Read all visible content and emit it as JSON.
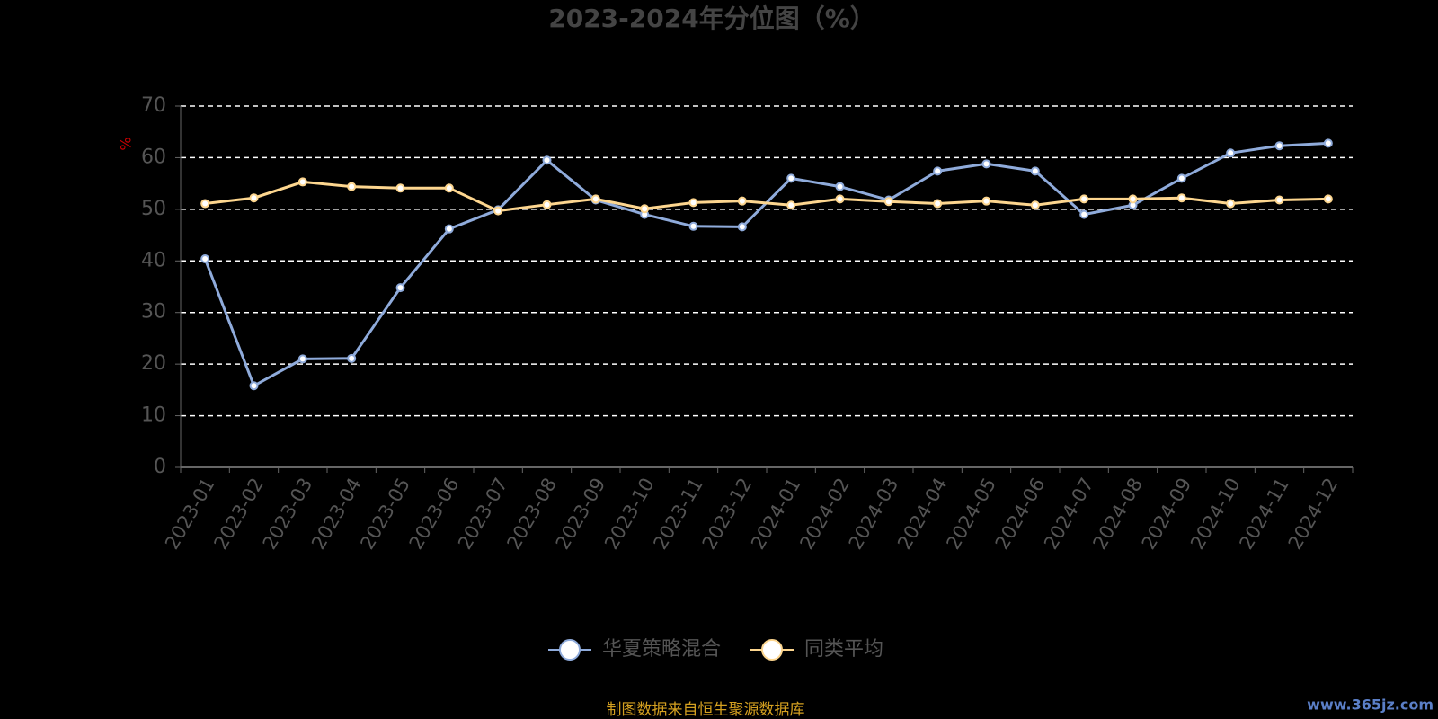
{
  "chart_data": {
    "type": "line",
    "title": "2023-2024年分位图（%）",
    "y_label": "%",
    "categories": [
      "2023-01",
      "2023-02",
      "2023-03",
      "2023-04",
      "2023-05",
      "2023-06",
      "2023-07",
      "2023-08",
      "2023-09",
      "2023-10",
      "2023-11",
      "2023-12",
      "2024-01",
      "2024-02",
      "2024-03",
      "2024-04",
      "2024-05",
      "2024-06",
      "2024-07",
      "2024-08",
      "2024-09",
      "2024-10",
      "2024-11",
      "2024-12"
    ],
    "series": [
      {
        "name": "华夏策略混合",
        "color": "#8fabdb",
        "values": [
          40.4,
          15.8,
          21.0,
          21.1,
          34.8,
          46.2,
          49.9,
          59.5,
          51.8,
          49.0,
          46.7,
          46.6,
          56.0,
          54.4,
          51.8,
          57.4,
          58.8,
          57.4,
          49.0,
          50.8,
          56.0,
          60.9,
          62.3,
          62.8
        ]
      },
      {
        "name": "同类平均",
        "color": "#fdd68f",
        "values": [
          51.1,
          52.2,
          55.3,
          54.4,
          54.1,
          54.1,
          49.7,
          50.9,
          52.0,
          50.1,
          51.3,
          51.6,
          50.8,
          52.0,
          51.5,
          51.1,
          51.6,
          50.8,
          52.0,
          52.0,
          52.2,
          51.1,
          51.8,
          52.0
        ]
      }
    ],
    "ylim": [
      0,
      70
    ],
    "yticks": [
      0,
      10,
      20,
      30,
      40,
      50,
      60,
      70
    ],
    "grid": true,
    "legend": "bottom",
    "source": "制图数据来自恒生聚源数据库",
    "watermark": "www.365jz.com"
  }
}
